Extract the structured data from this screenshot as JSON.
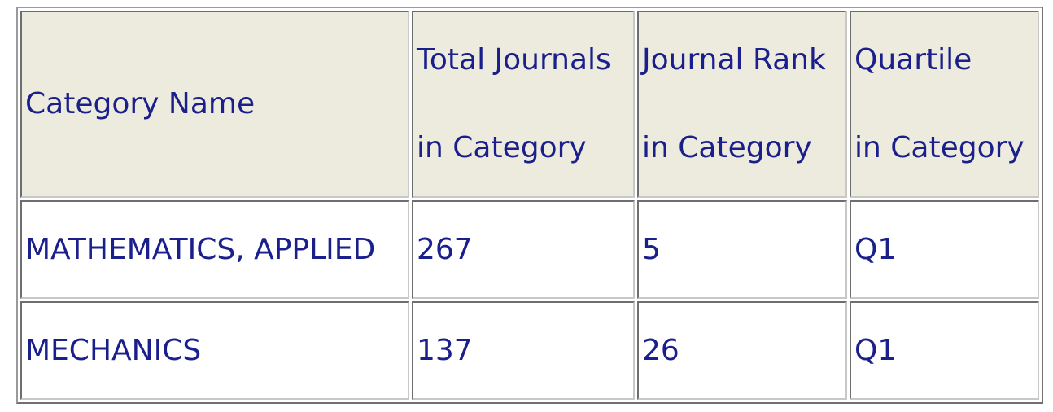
{
  "table": {
    "headers": [
      {
        "lines": [
          "Category Name"
        ]
      },
      {
        "lines": [
          "Total Journals",
          "in Category"
        ]
      },
      {
        "lines": [
          "Journal Rank",
          "in Category"
        ]
      },
      {
        "lines": [
          "Quartile",
          "in Category"
        ]
      }
    ],
    "rows": [
      [
        "MATHEMATICS, APPLIED",
        "267",
        "5",
        "Q1"
      ],
      [
        "MECHANICS",
        "137",
        "26",
        "Q1"
      ]
    ]
  },
  "colors": {
    "text": "#1a1f8c",
    "header_bg": "#ecebde",
    "border": "#9a9a9a"
  }
}
